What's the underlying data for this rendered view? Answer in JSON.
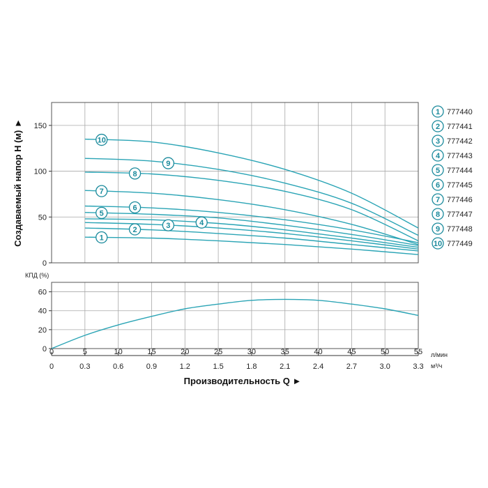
{
  "colors": {
    "curve": "#2aa4b5",
    "marker": "#1a8a9c",
    "grid": "#a8a8a8",
    "frame": "#555555"
  },
  "chart_data": [
    {
      "type": "line",
      "ylabel": "Создаваемый напор H (м) ►",
      "xlim": [
        0,
        55
      ],
      "ylim": [
        0,
        175
      ],
      "yticks": [
        0,
        50,
        100,
        150
      ],
      "series": [
        {
          "name": "777440",
          "marker": "1",
          "x": [
            5,
            15,
            25,
            35,
            45,
            55
          ],
          "values": [
            28,
            27,
            24,
            20,
            15,
            9
          ]
        },
        {
          "name": "777441",
          "marker": "2",
          "x": [
            5,
            15,
            25,
            35,
            45,
            55
          ],
          "values": [
            38,
            36,
            32,
            27,
            20,
            13
          ]
        },
        {
          "name": "777442",
          "marker": "3",
          "x": [
            5,
            15,
            25,
            35,
            45,
            55
          ],
          "values": [
            44,
            42,
            38,
            32,
            24,
            15
          ]
        },
        {
          "name": "777443",
          "marker": "4",
          "x": [
            5,
            15,
            25,
            35,
            45,
            55
          ],
          "values": [
            48,
            47,
            43,
            36,
            27,
            17
          ]
        },
        {
          "name": "777444",
          "marker": "5",
          "x": [
            5,
            15,
            25,
            35,
            45,
            55
          ],
          "values": [
            55,
            53,
            49,
            41,
            31,
            19
          ]
        },
        {
          "name": "777445",
          "marker": "6",
          "x": [
            5,
            15,
            25,
            35,
            45,
            55
          ],
          "values": [
            62,
            60,
            55,
            47,
            36,
            22
          ]
        },
        {
          "name": "777446",
          "marker": "7",
          "x": [
            5,
            15,
            25,
            35,
            45,
            55
          ],
          "values": [
            79,
            76,
            69,
            58,
            42,
            20
          ]
        },
        {
          "name": "777447",
          "marker": "8",
          "x": [
            5,
            15,
            25,
            35,
            45,
            55
          ],
          "values": [
            99,
            97,
            90,
            78,
            58,
            24
          ]
        },
        {
          "name": "777448",
          "marker": "9",
          "x": [
            5,
            15,
            25,
            35,
            45,
            55
          ],
          "values": [
            114,
            111,
            102,
            87,
            65,
            30
          ]
        },
        {
          "name": "777449",
          "marker": "10",
          "x": [
            5,
            15,
            25,
            35,
            45,
            55
          ],
          "values": [
            135,
            132,
            120,
            102,
            76,
            38
          ]
        }
      ],
      "legend": "right"
    },
    {
      "type": "line",
      "ylabel": "КПД (%)",
      "xlabel": "Производительность Q ►",
      "xlim": [
        0,
        55
      ],
      "ylim": [
        0,
        70
      ],
      "yticks": [
        0,
        20,
        40,
        60
      ],
      "xticks": [
        0,
        5,
        10,
        15,
        20,
        25,
        30,
        35,
        40,
        45,
        50,
        55
      ],
      "xticks_secondary": [
        "0",
        "0.3",
        "0.6",
        "0.9",
        "1.2",
        "1.5",
        "1.8",
        "2.1",
        "2.4",
        "2.7",
        "3.0",
        "3.3"
      ],
      "xunit_primary": "л/мин",
      "xunit_secondary": "м³/ч",
      "series": [
        {
          "x": [
            0,
            5,
            10,
            15,
            20,
            25,
            30,
            35,
            40,
            45,
            50,
            55
          ],
          "values": [
            0,
            14,
            25,
            34,
            42,
            47,
            51,
            52,
            51,
            47,
            42,
            35
          ]
        }
      ]
    }
  ]
}
